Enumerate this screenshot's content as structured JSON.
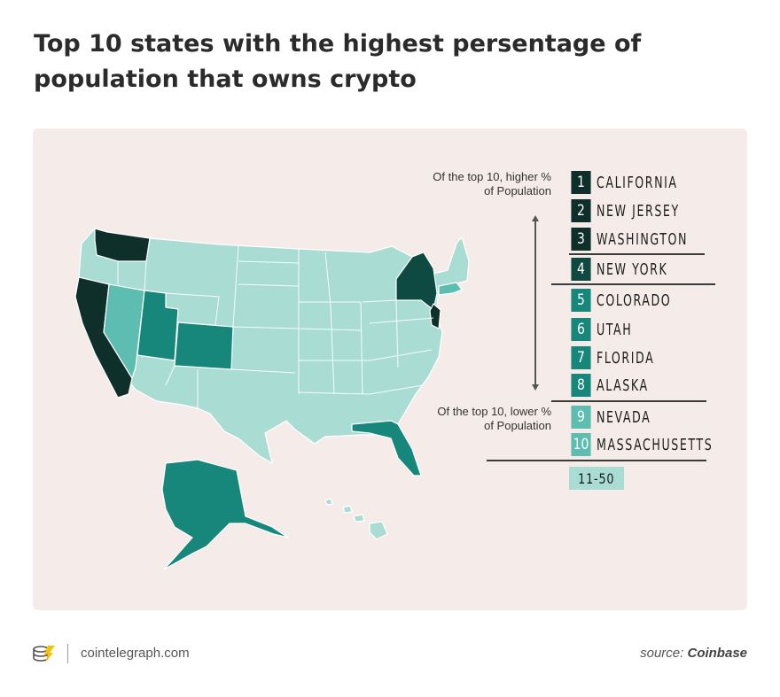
{
  "title": "Top 10 states with the highest persentage of population that owns crypto",
  "colors": {
    "background": "#f5ecea",
    "rank_1_3": "#0e2f2a",
    "rank_4": "#0f4a42",
    "rank_5_8": "#16877a",
    "rank_9_10": "#5dbdb0",
    "rank_11_50": "#a9ddd4",
    "border": "#ffffff"
  },
  "legend": {
    "note_top": "Of the top 10, higher % of Population",
    "note_bottom": "Of the top 10, lower % of Population",
    "items": [
      {
        "rank": "1",
        "state": "CALIFORNIA",
        "tier": "rank_1_3"
      },
      {
        "rank": "2",
        "state": "NEW JERSEY",
        "tier": "rank_1_3"
      },
      {
        "rank": "3",
        "state": "WASHINGTON",
        "tier": "rank_1_3"
      },
      {
        "rank": "4",
        "state": "NEW YORK",
        "tier": "rank_4"
      },
      {
        "rank": "5",
        "state": "COLORADO",
        "tier": "rank_5_8"
      },
      {
        "rank": "6",
        "state": "UTAH",
        "tier": "rank_5_8"
      },
      {
        "rank": "7",
        "state": "FLORIDA",
        "tier": "rank_5_8"
      },
      {
        "rank": "8",
        "state": "ALASKA",
        "tier": "rank_5_8"
      },
      {
        "rank": "9",
        "state": "NEVADA",
        "tier": "rank_9_10"
      },
      {
        "rank": "10",
        "state": "MASSACHUSETTS",
        "tier": "rank_9_10"
      }
    ],
    "other_range": "11-50"
  },
  "footer": {
    "site": "cointelegraph.com",
    "source_label": "source:",
    "source_name": "Coinbase",
    "logo_icon": "cointelegraph-logo-icon"
  }
}
